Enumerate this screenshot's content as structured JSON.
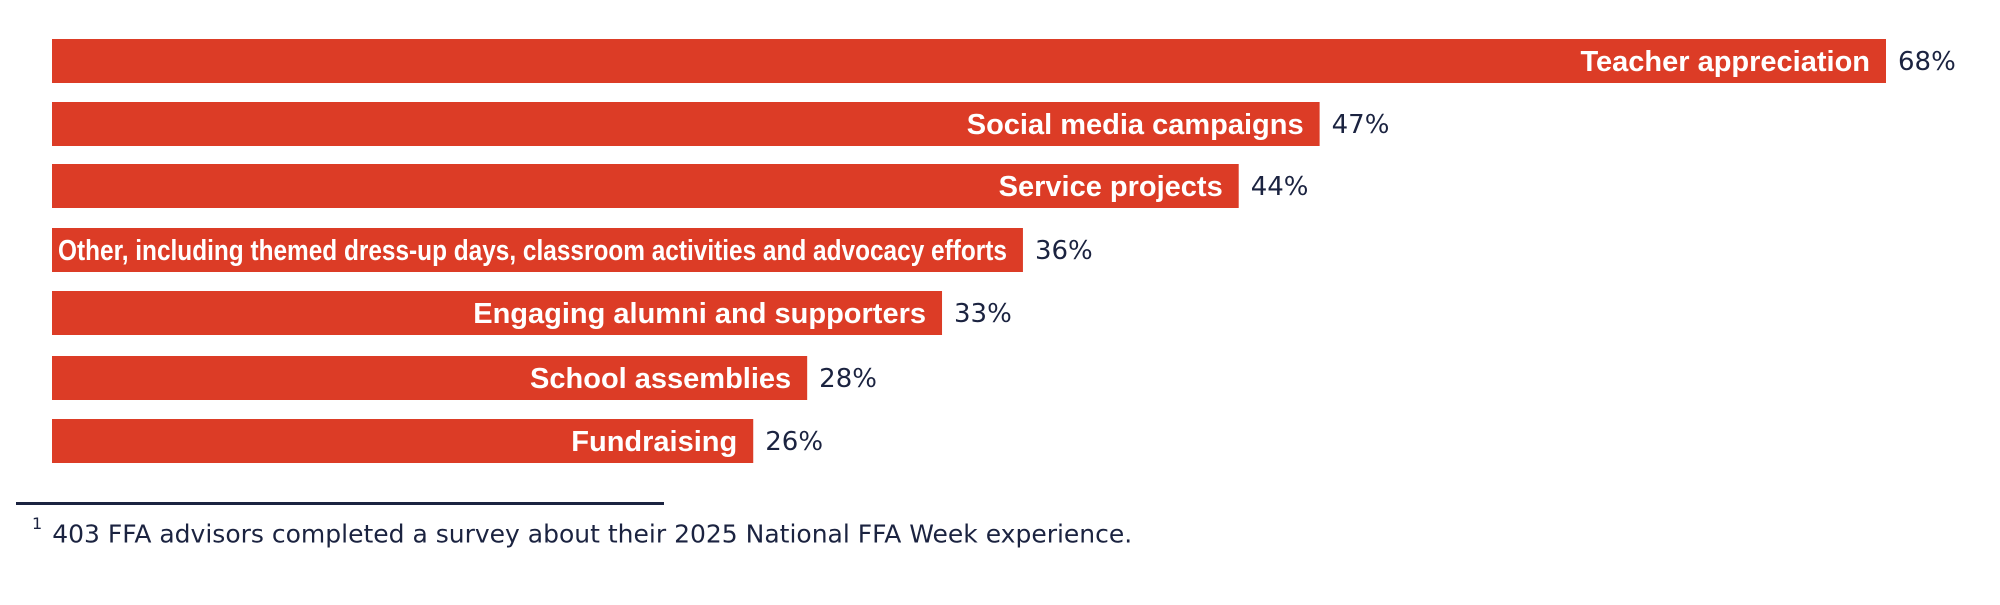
{
  "chart_data": {
    "type": "bar",
    "orientation": "horizontal",
    "bar_color": "#dc3c26",
    "value_color": "#1b2340",
    "xlim": [
      0,
      68
    ],
    "categories": [
      "Teacher appreciation",
      "Social media campaigns",
      "Service projects",
      "Other, including themed dress-up days, classroom activities and advocacy efforts",
      "Engaging alumni and supporters",
      "School assemblies",
      "Fundraising"
    ],
    "values": [
      68,
      47,
      44,
      36,
      33,
      28,
      26
    ],
    "value_labels": [
      "68%",
      "47%",
      "44%",
      "36%",
      "33%",
      "28%",
      "26%"
    ]
  },
  "footnote": {
    "marker": "1",
    "text": "403 FFA advisors completed a survey about their 2025 National FFA Week experience."
  }
}
